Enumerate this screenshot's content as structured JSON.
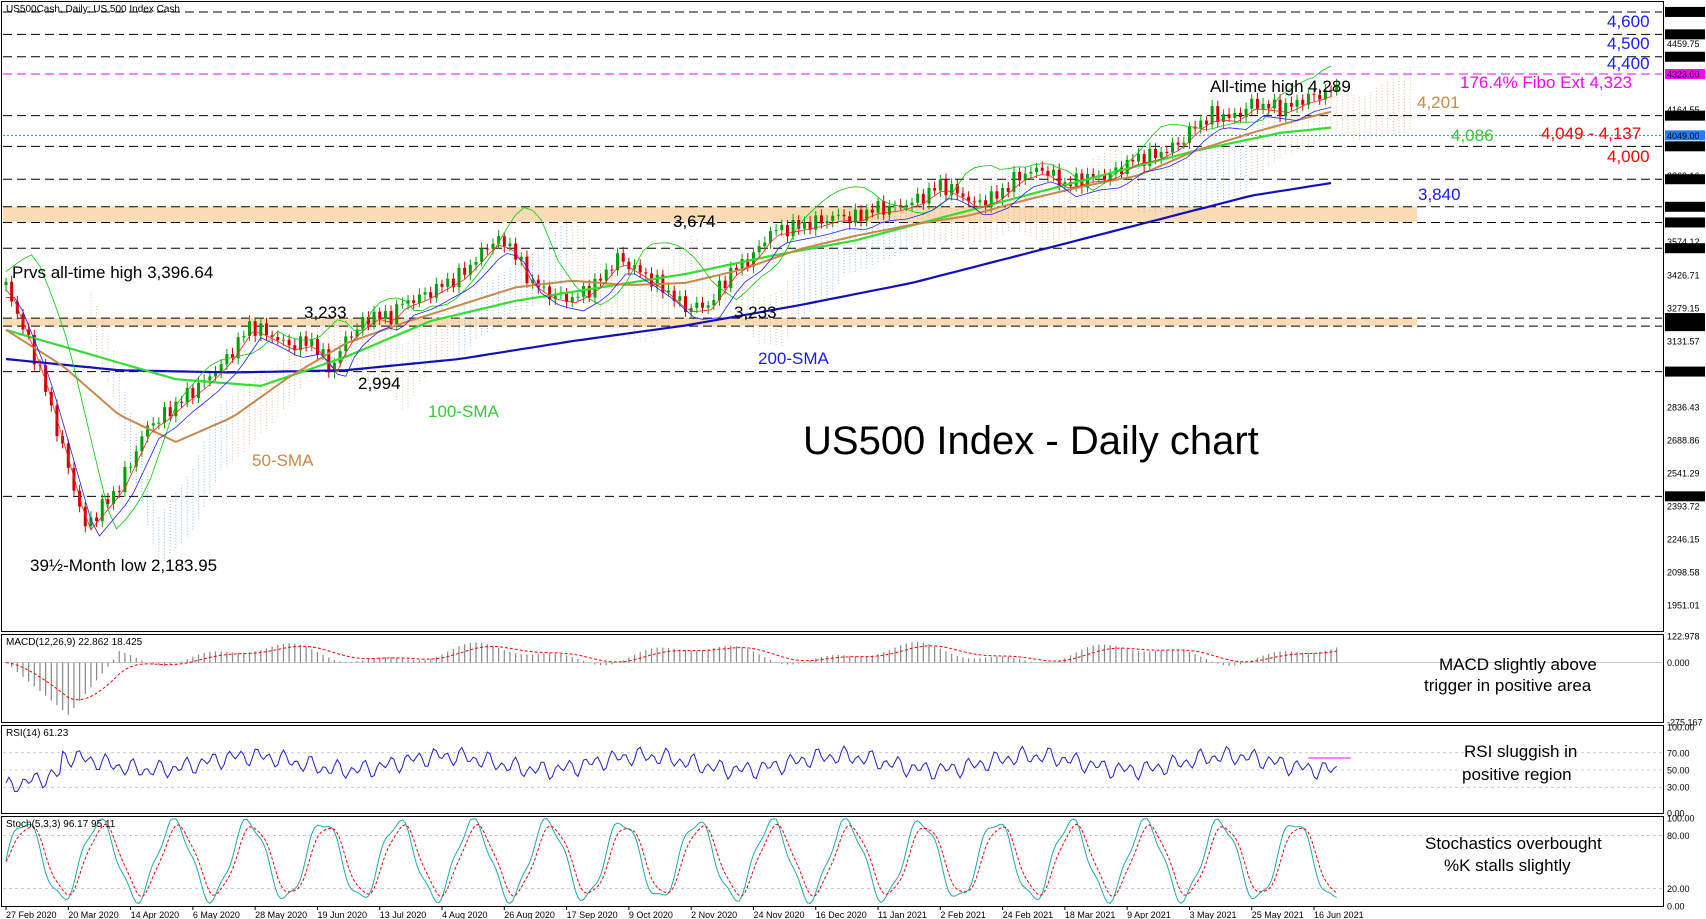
{
  "chart_data": {
    "type": "line",
    "chart_title": "US500 Index - Daily chart",
    "header": "US500Cash, Daily:  US 500 Index Cash",
    "x_tick_labels": [
      "27 Feb 2020",
      "20 Mar 2020",
      "14 Apr 2020",
      "6 May 2020",
      "28 May 2020",
      "19 Jun 2020",
      "13 Jul 2020",
      "4 Aug 2020",
      "26 Aug 2020",
      "17 Sep 2020",
      "9 Oct 2020",
      "2 Nov 2020",
      "24 Nov 2020",
      "16 Dec 2020",
      "11 Jan 2021",
      "2 Feb 2021",
      "24 Feb 2021",
      "18 Mar 2021",
      "9 Apr 2021",
      "3 May 2021",
      "25 May 2021",
      "16 Jun 2021"
    ],
    "price_axis_labels": [
      {
        "v": 4600,
        "text": "4600.00",
        "boxed": true
      },
      {
        "v": 4500,
        "text": "4500.00",
        "boxed": true
      },
      {
        "v": 4459,
        "text": "4459.75",
        "boxed": false
      },
      {
        "v": 4400,
        "text": "4400.00",
        "boxed": true
      },
      {
        "v": 4323,
        "text": "4323.00",
        "boxed": true,
        "highlight": "#ff00ff"
      },
      {
        "v": 4164,
        "text": "4164.55",
        "boxed": false
      },
      {
        "v": 4137,
        "text": "4137.00",
        "boxed": true
      },
      {
        "v": 4049,
        "text": "4049.00",
        "boxed": true,
        "highlight": "#1f7fff"
      },
      {
        "v": 4000,
        "text": "4000.00",
        "boxed": true
      },
      {
        "v": 3869,
        "text": "3869.16",
        "boxed": false
      },
      {
        "v": 3853,
        "text": "3853.00",
        "boxed": true
      },
      {
        "v": 3730,
        "text": "3730.00",
        "boxed": true
      },
      {
        "v": 3660,
        "text": "3660.00",
        "boxed": true
      },
      {
        "v": 3574,
        "text": "3574.12",
        "boxed": false
      },
      {
        "v": 3545,
        "text": "3545.00",
        "boxed": true
      },
      {
        "v": 3426,
        "text": "3426.71",
        "boxed": false
      },
      {
        "v": 3279,
        "text": "3279.15",
        "boxed": false
      },
      {
        "v": 3233,
        "text": "3233.00",
        "boxed": true
      },
      {
        "v": 3197,
        "text": "3197.00",
        "boxed": true
      },
      {
        "v": 3131,
        "text": "3131.57",
        "boxed": false
      },
      {
        "v": 2994,
        "text": "2994.00",
        "boxed": true
      },
      {
        "v": 2836,
        "text": "2836.43",
        "boxed": false
      },
      {
        "v": 2688,
        "text": "2688.86",
        "boxed": false
      },
      {
        "v": 2541,
        "text": "2541.29",
        "boxed": false
      },
      {
        "v": 2437,
        "text": "2437.00",
        "boxed": true
      },
      {
        "v": 2393,
        "text": "2393.72",
        "boxed": false
      },
      {
        "v": 2246,
        "text": "2246.15",
        "boxed": false
      },
      {
        "v": 2098,
        "text": "2098.58",
        "boxed": false
      },
      {
        "v": 1951,
        "text": "1951.01",
        "boxed": false
      }
    ],
    "price_range": [
      1840,
      4640
    ],
    "support_resistance_levels": [
      4600,
      4500,
      4400,
      4137,
      4000,
      3853,
      3730,
      3660,
      3545,
      3233,
      3197,
      2994,
      2437
    ],
    "fibo_level": {
      "value": 4323,
      "label": "176.4% Fibo Ext 4,323",
      "color": "#ff00ff"
    },
    "blue_dotted_level": 4049,
    "zones": [
      {
        "from": 3660,
        "to": 3730
      },
      {
        "from": 3197,
        "to": 3233
      }
    ],
    "price_annotations": {
      "lvl4600": "4,600",
      "lvl4500": "4,500",
      "lvl4400": "4,400",
      "fibo": "176.4% Fibo Ext 4,323",
      "ath": "All-time high 4,289",
      "v4201": "4,201",
      "range": "4,049 - 4,137",
      "v4086": "4,086",
      "v4000": "4,000",
      "v3840": "3,840",
      "v3674": "3,674",
      "v3233a": "3,233",
      "v3233b": "3,233",
      "prvs": "Prvs all-time high 3,396.64",
      "v2994": "2,994",
      "sma200": "200-SMA",
      "sma100": "100-SMA",
      "sma50": "50-SMA",
      "low": "39½-Month low 2,183.95"
    },
    "macd": {
      "header": "MACD(12,26,9) 22.862 18.425",
      "axis": [
        {
          "v": 122.978,
          "text": "122.978"
        },
        {
          "v": 0,
          "text": "0.000"
        },
        {
          "v": -275.167,
          "text": "-275.167"
        }
      ],
      "note_l1": "MACD slightly above",
      "note_l2": "trigger in positive area"
    },
    "rsi": {
      "header": "RSI(14) 61.23",
      "axis": [
        {
          "v": 100,
          "text": "100.00"
        },
        {
          "v": 70,
          "text": "70.00"
        },
        {
          "v": 50,
          "text": "50.00"
        },
        {
          "v": 30,
          "text": "30.00"
        },
        {
          "v": 0,
          "text": "0.00"
        }
      ],
      "note_l1": "RSI sluggish in",
      "note_l2": "positive region"
    },
    "stoch": {
      "header": "Stoch(5,3,3) 96.17 95.11",
      "axis": [
        {
          "v": 100,
          "text": "100.00"
        },
        {
          "v": 80,
          "text": "80.00"
        },
        {
          "v": 20,
          "text": "20.00"
        },
        {
          "v": 0,
          "text": "0.00"
        }
      ],
      "note_l1": "Stochastics overbought",
      "note_l2": "%K stalls slightly"
    },
    "series": [
      {
        "name": "price",
        "x": [
          0,
          12,
          20,
          28,
          40,
          50,
          56,
          62,
          70,
          78,
          86,
          93,
          100,
          108,
          115,
          120,
          125,
          130,
          135,
          140,
          147,
          154,
          160,
          165,
          172,
          178,
          185,
          192,
          200,
          208,
          216,
          224,
          232,
          240,
          248,
          256,
          264,
          270,
          278,
          286,
          294,
          300,
          306,
          314,
          322,
          330,
          338,
          342,
          350,
          358,
          366,
          374,
          382,
          390,
          398,
          406,
          414,
          420,
          426,
          434,
          440,
          446,
          452,
          458,
          464,
          470
        ],
        "y": [
          3380,
          3000,
          2650,
          2300,
          2480,
          2750,
          2800,
          2870,
          2950,
          3050,
          3200,
          3160,
          3110,
          3130,
          3000,
          3140,
          3200,
          3250,
          3230,
          3300,
          3330,
          3380,
          3420,
          3480,
          3580,
          3560,
          3400,
          3340,
          3320,
          3380,
          3500,
          3440,
          3370,
          3280,
          3290,
          3440,
          3510,
          3620,
          3640,
          3660,
          3690,
          3680,
          3720,
          3730,
          3760,
          3830,
          3780,
          3740,
          3780,
          3870,
          3900,
          3830,
          3860,
          3870,
          3940,
          3960,
          4010,
          4090,
          4140,
          4130,
          4190,
          4180,
          4170,
          4210,
          4230,
          4260
        ]
      },
      {
        "name": "200-SMA",
        "x": [
          0,
          40,
          80,
          120,
          160,
          200,
          240,
          280,
          320,
          360,
          400,
          440,
          470
        ],
        "y": [
          3050,
          3000,
          2990,
          3000,
          3050,
          3130,
          3200,
          3290,
          3390,
          3520,
          3650,
          3780,
          3840
        ]
      },
      {
        "name": "100-SMA",
        "x": [
          0,
          30,
          60,
          90,
          120,
          150,
          180,
          210,
          240,
          270,
          300,
          330,
          360,
          390,
          420,
          450,
          470
        ],
        "y": [
          3180,
          3070,
          2960,
          2930,
          3060,
          3220,
          3310,
          3370,
          3430,
          3510,
          3580,
          3680,
          3780,
          3880,
          3980,
          4060,
          4086
        ]
      },
      {
        "name": "50-SMA",
        "x": [
          0,
          20,
          40,
          60,
          80,
          100,
          120,
          140,
          160,
          180,
          200,
          220,
          240,
          260,
          280,
          300,
          320,
          340,
          360,
          380,
          400,
          420,
          440,
          460,
          470
        ],
        "y": [
          3180,
          3020,
          2800,
          2680,
          2790,
          2970,
          3120,
          3210,
          3290,
          3370,
          3400,
          3380,
          3390,
          3450,
          3540,
          3600,
          3650,
          3690,
          3760,
          3820,
          3870,
          3980,
          4060,
          4130,
          4160
        ]
      }
    ]
  }
}
